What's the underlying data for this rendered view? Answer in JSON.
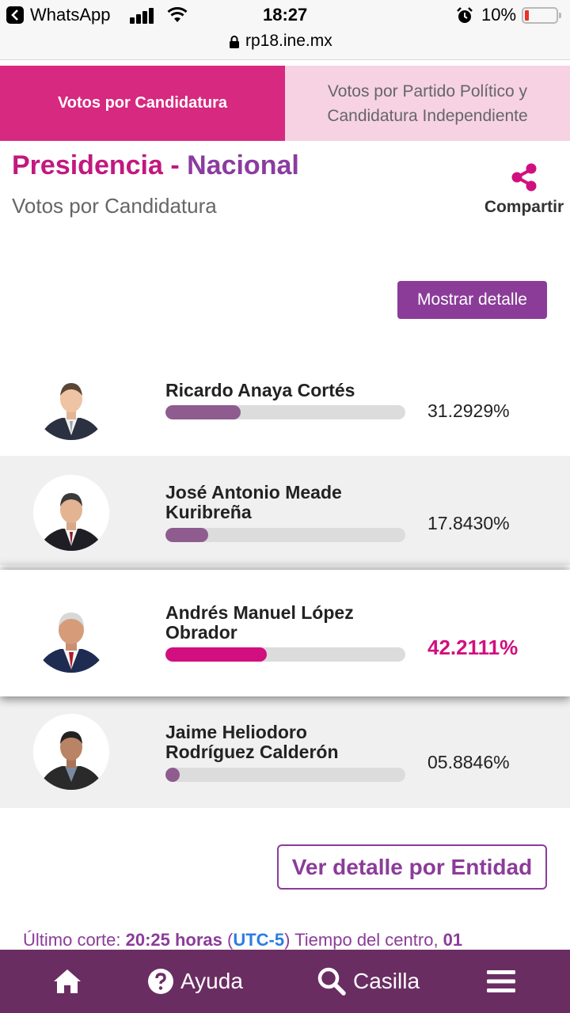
{
  "status_bar": {
    "app": "WhatsApp",
    "time": "18:27",
    "battery": "10%"
  },
  "url": "rp18.ine.mx",
  "tabs": [
    {
      "label": "Votos por Candidatura",
      "active": true
    },
    {
      "label": "Votos por Partido Político y Candidatura Independiente",
      "active": false
    }
  ],
  "header": {
    "title_part1": "Presidencia",
    "title_sep": " - ",
    "title_part2": "Nacional",
    "subtitle": "Votos por Candidatura",
    "share_label": "Compartir",
    "share_icon": "share-icon"
  },
  "detail_button": "Mostrar detalle",
  "candidates": [
    {
      "name": "Ricardo Anaya Cortés",
      "percent": "31.2929%",
      "share": 0.312929
    },
    {
      "name": "José Antonio Meade Kuribreña",
      "percent": "17.8430%",
      "share": 0.17843
    },
    {
      "name": "Andrés Manuel López Obrador",
      "percent": "42.2111%",
      "share": 0.422111,
      "leading": true
    },
    {
      "name": "Jaime Heliodoro Rodríguez Calderón",
      "percent": "05.8846%",
      "share": 0.058846
    }
  ],
  "entity_button": "Ver detalle por Entidad",
  "cutoff": {
    "label": "Último corte: ",
    "time": "20:25 horas",
    "open": " (",
    "tz": "UTC-5",
    "close": ")",
    "rest": " Tiempo del centro, ",
    "day": "01"
  },
  "bottom_nav": {
    "home_icon": "home-icon",
    "help": "Ayuda",
    "search": "Casilla",
    "menu_icon": "menu-icon"
  },
  "colors": {
    "accent": "#d6297f",
    "purple": "#8b3c99",
    "nav": "#6a2d62",
    "bar_fill": "#8e5c8e",
    "leader": "#d20f7e"
  }
}
